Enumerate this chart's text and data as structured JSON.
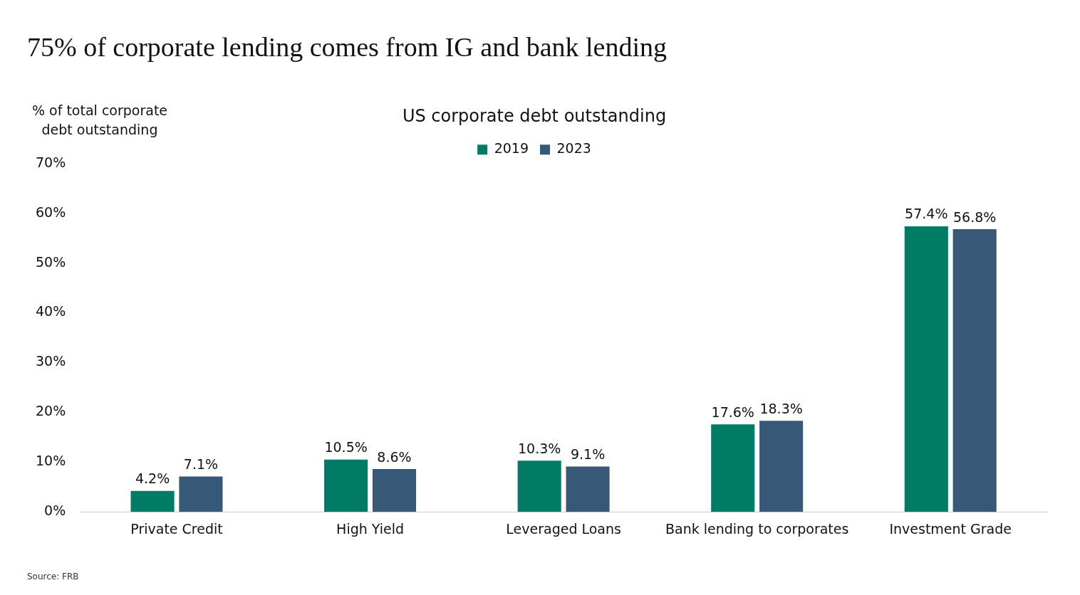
{
  "chart_data": {
    "type": "bar",
    "title": "75% of corporate lending comes from IG and bank lending",
    "subtitle": "US corporate debt outstanding",
    "ylabel": "% of total corporate debt outstanding",
    "categories": [
      "Private Credit",
      "High Yield",
      "Leveraged Loans",
      "Bank lending to corporates",
      "Investment Grade"
    ],
    "series": [
      {
        "name": "2019",
        "color": "#007b65",
        "values": [
          4.2,
          10.5,
          10.3,
          17.6,
          57.4
        ],
        "value_labels": [
          "4.2%",
          "10.5%",
          "10.3%",
          "17.6%",
          "57.4%"
        ]
      },
      {
        "name": "2023",
        "color": "#375877",
        "values": [
          7.1,
          8.6,
          9.1,
          18.3,
          56.8
        ],
        "value_labels": [
          "7.1%",
          "8.6%",
          "9.1%",
          "18.3%",
          "56.8%"
        ]
      }
    ],
    "ylim": [
      0,
      70
    ],
    "yticks": [
      {
        "value": 0,
        "label": "0%"
      },
      {
        "value": 10,
        "label": "10%"
      },
      {
        "value": 20,
        "label": "20%"
      },
      {
        "value": 30,
        "label": "30%"
      },
      {
        "value": 40,
        "label": "40%"
      },
      {
        "value": 50,
        "label": "50%"
      },
      {
        "value": 60,
        "label": "60%"
      },
      {
        "value": 70,
        "label": "70%"
      }
    ],
    "grid": false,
    "legend": "top",
    "annotations": [
      "Source: FRB"
    ]
  }
}
